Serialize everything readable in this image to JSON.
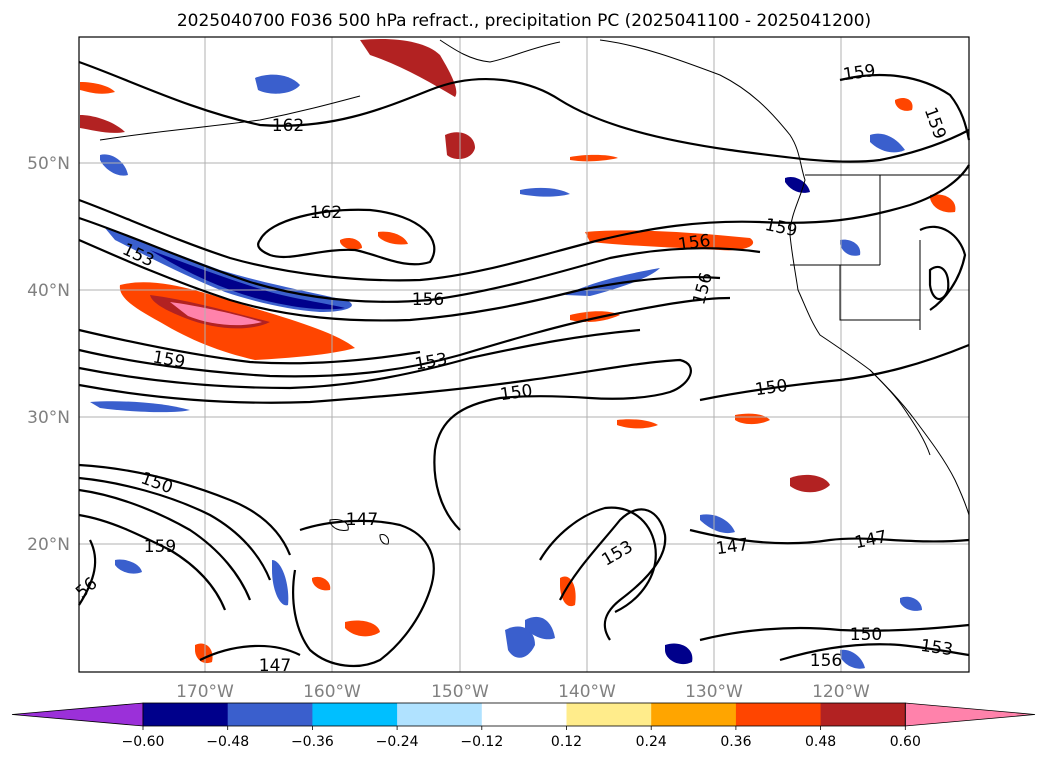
{
  "title": "2025040700 F036 500 hPa refract., precipitation PC (2025041100 - 2025041200)",
  "map": {
    "lon_ticks": [
      "170°W",
      "160°W",
      "150°W",
      "140°W",
      "130°W",
      "120°W"
    ],
    "lat_ticks": [
      "50°N",
      "40°N",
      "30°N",
      "20°N"
    ],
    "contour_labels": [
      "162",
      "162",
      "153",
      "159",
      "156",
      "156",
      "153",
      "150",
      "159",
      "150",
      "150",
      "147",
      "159",
      "56",
      "147",
      "153",
      "147",
      "147",
      "150",
      "156",
      "153",
      "159",
      "159",
      "156"
    ]
  },
  "colorbar": {
    "ticks": [
      "−0.60",
      "−0.48",
      "−0.36",
      "−0.24",
      "−0.12",
      "0.12",
      "0.24",
      "0.36",
      "0.48",
      "0.60"
    ],
    "colors": [
      "#9b30d9",
      "#00008b",
      "#3a5fcd",
      "#00bfff",
      "#b0e2ff",
      "#ffffff",
      "#ffec8b",
      "#ffa500",
      "#ff4500",
      "#b22222",
      "#ff82ab"
    ]
  },
  "colors": {
    "grid": "#b0b0b0",
    "contour": "#000000",
    "coast": "#000000"
  }
}
